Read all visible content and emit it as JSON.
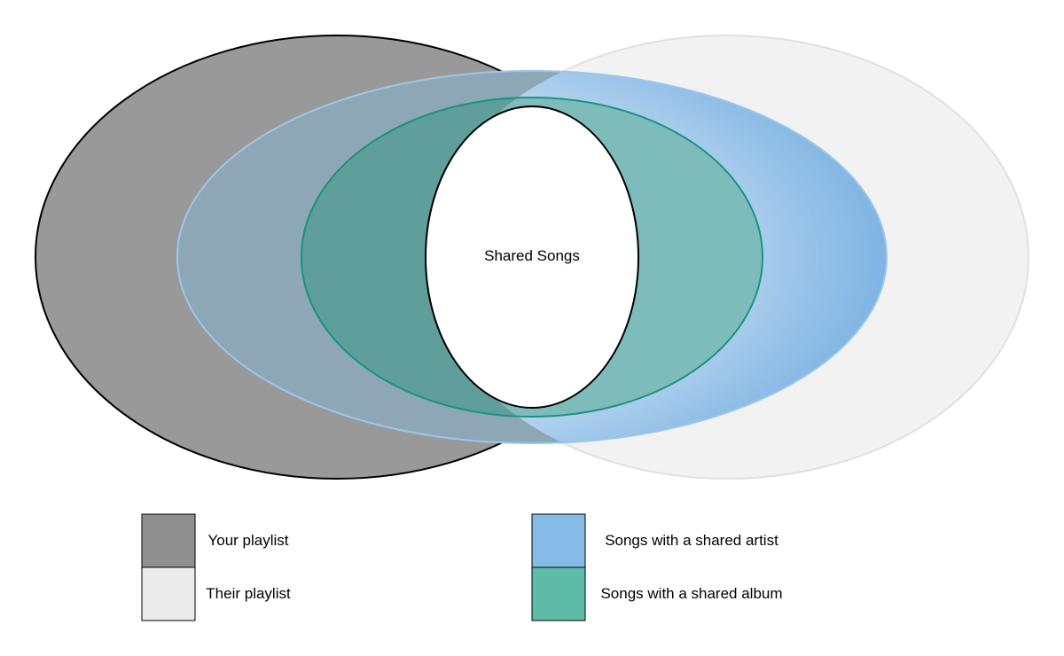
{
  "center_label": "Shared Songs",
  "sets": [
    {
      "id": "your-playlist",
      "color": "#999999"
    },
    {
      "id": "their-playlist",
      "color": "#f2f2f2"
    },
    {
      "id": "shared-artist",
      "color": "#8cbde8"
    },
    {
      "id": "shared-album",
      "color": "#6cb5b0"
    }
  ],
  "legend": [
    {
      "label": "Your playlist",
      "color": "#8f8f8f"
    },
    {
      "label": "Their playlist",
      "color": "#ebebeb"
    },
    {
      "label": "Songs with a shared artist",
      "color": "#85bbe6"
    },
    {
      "label": "Songs with a shared album",
      "color": "#5ebba8"
    }
  ]
}
